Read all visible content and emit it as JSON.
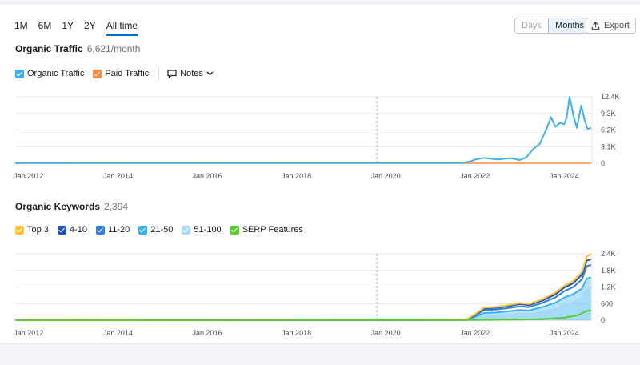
{
  "periods": [
    "1M",
    "6M",
    "1Y",
    "2Y",
    "All time"
  ],
  "active_period": "All time",
  "view_toggle": {
    "days": "Days",
    "months": "Months",
    "active": "Months"
  },
  "export_label": "Export",
  "traffic": {
    "title": "Organic Traffic",
    "value": "6,621/month",
    "legend": {
      "organic": "Organic Traffic",
      "paid": "Paid Traffic",
      "notes": "Notes"
    }
  },
  "keywords": {
    "title": "Organic Keywords",
    "value": "2,394",
    "legend": [
      "Top 3",
      "4-10",
      "11-20",
      "21-50",
      "51-100",
      "SERP Features"
    ]
  },
  "colors": {
    "organic": "#3fb1e8",
    "paid": "#ff8c43",
    "top3": "#ffc033",
    "pos4_10": "#1f54b5",
    "pos11_20": "#2d7fda",
    "pos21_50": "#34b3ef",
    "pos51_100": "#a7d8f7",
    "serp": "#58cb2d"
  },
  "x_ticks": [
    "Jan 2012",
    "Jan 2014",
    "Jan 2016",
    "Jan 2018",
    "Jan 2020",
    "Jan 2022",
    "Jan 2024"
  ],
  "chart_data": [
    {
      "type": "line",
      "title": "Organic Traffic",
      "x_range": [
        "2011-09",
        "2024-10"
      ],
      "yticks": [
        "12.4K",
        "9.3K",
        "6.2K",
        "3.1K",
        "0"
      ],
      "ylim": [
        0,
        12400
      ],
      "series": [
        {
          "name": "Organic Traffic",
          "x": [
            2011.7,
            2021.7,
            2021.9,
            2022.0,
            2022.2,
            2022.5,
            2022.8,
            2023.0,
            2023.15,
            2023.3,
            2023.45,
            2023.6,
            2023.7,
            2023.8,
            2023.9,
            2024.0,
            2024.05,
            2024.12,
            2024.2,
            2024.28,
            2024.38,
            2024.45,
            2024.52,
            2024.6
          ],
          "y": [
            50,
            60,
            350,
            700,
            1000,
            700,
            950,
            600,
            1100,
            2600,
            3600,
            6400,
            8600,
            6800,
            7500,
            7300,
            8500,
            12400,
            9000,
            6600,
            10800,
            8200,
            6400,
            6600
          ]
        },
        {
          "name": "Paid Traffic",
          "x": [
            2011.7,
            2024.6
          ],
          "y": [
            0,
            0
          ]
        }
      ],
      "annotations": [
        {
          "type": "vertical-dashed-line",
          "x": 2019.8
        }
      ]
    },
    {
      "type": "area",
      "title": "Organic Keywords",
      "x_range": [
        "2011-09",
        "2024-10"
      ],
      "yticks": [
        "2.4K",
        "1.8K",
        "1.2K",
        "600",
        "0"
      ],
      "ylim": [
        0,
        2400
      ],
      "series": [
        {
          "name": "Top 3",
          "x": [
            2011.7,
            2021.8,
            2022.0,
            2022.2,
            2022.5,
            2022.8,
            2023.0,
            2023.2,
            2023.5,
            2023.8,
            2024.0,
            2024.2,
            2024.4,
            2024.5,
            2024.6
          ],
          "y": [
            0,
            20,
            220,
            450,
            480,
            560,
            620,
            580,
            750,
            1000,
            1250,
            1420,
            1750,
            2300,
            2394
          ]
        },
        {
          "name": "4-10",
          "x": [
            2011.7,
            2021.8,
            2022.0,
            2022.2,
            2022.5,
            2022.8,
            2023.0,
            2023.2,
            2023.5,
            2023.8,
            2024.0,
            2024.2,
            2024.4,
            2024.5,
            2024.6
          ],
          "y": [
            0,
            15,
            200,
            420,
            450,
            520,
            580,
            540,
            700,
            930,
            1180,
            1340,
            1650,
            2150,
            2200
          ]
        },
        {
          "name": "11-20",
          "x": [
            2011.7,
            2021.8,
            2022.0,
            2022.2,
            2022.5,
            2022.8,
            2023.0,
            2023.2,
            2023.5,
            2023.8,
            2024.0,
            2024.2,
            2024.4,
            2024.5,
            2024.6
          ],
          "y": [
            0,
            12,
            170,
            360,
            390,
            450,
            500,
            470,
            620,
            820,
            1050,
            1200,
            1480,
            1950,
            2000
          ]
        },
        {
          "name": "21-50",
          "x": [
            2011.7,
            2021.8,
            2022.0,
            2022.2,
            2022.5,
            2022.8,
            2023.0,
            2023.2,
            2023.5,
            2023.8,
            2024.0,
            2024.2,
            2024.4,
            2024.5,
            2024.6
          ],
          "y": [
            0,
            8,
            120,
            260,
            280,
            330,
            370,
            350,
            470,
            630,
            820,
            940,
            1150,
            1500,
            1550
          ]
        },
        {
          "name": "51-100",
          "x": [
            2011.7,
            2021.8,
            2022.0,
            2022.2,
            2022.5,
            2022.8,
            2023.0,
            2023.2,
            2023.5,
            2023.8,
            2024.0,
            2024.2,
            2024.4,
            2024.5,
            2024.6
          ],
          "y": [
            0,
            5,
            70,
            150,
            165,
            200,
            230,
            220,
            300,
            420,
            560,
            650,
            800,
            1100,
            1200
          ]
        },
        {
          "name": "SERP Features",
          "x": [
            2011.7,
            2022.0,
            2023.0,
            2023.5,
            2024.0,
            2024.3,
            2024.5,
            2024.6
          ],
          "y": [
            0,
            5,
            20,
            40,
            90,
            180,
            330,
            360
          ]
        }
      ],
      "annotations": [
        {
          "type": "vertical-dashed-line",
          "x": 2019.8
        }
      ]
    }
  ]
}
